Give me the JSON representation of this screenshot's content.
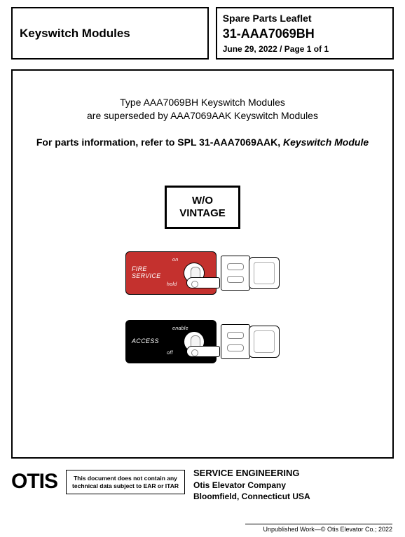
{
  "header": {
    "left_title": "Keyswitch Modules",
    "spl_label": "Spare Parts Leaflet",
    "part_number": "31-AAA7069BH",
    "date_page": "June 29, 2022 / Page 1 of 1"
  },
  "body": {
    "supersede_line1": "Type AAA7069BH Keyswitch Modules",
    "supersede_line2": "are superseded by AAA7069AAK Keyswitch Modules",
    "refer_prefix": "For parts information, refer to SPL 31-AAA7069AAK, ",
    "refer_italic": "Keyswitch Module",
    "wo_line1": "W/O",
    "wo_line2": "VINTAGE"
  },
  "modules": {
    "fire": {
      "plate_color": "#c4312e",
      "main_line1": "FIRE",
      "main_line2": "SERVICE",
      "top_label": "on",
      "bottom_label": "hold"
    },
    "access": {
      "plate_color": "#000000",
      "main_line1": "ACCESS",
      "top_label": "enable",
      "bottom_label": "off"
    }
  },
  "footer": {
    "logo": "OTIS",
    "disclaimer_line1": "This document does not contain any",
    "disclaimer_line2": "technical data subject to EAR or ITAR",
    "service_eng": "SERVICE ENGINEERING",
    "company": "Otis Elevator Company",
    "location": "Bloomfield, Connecticut USA",
    "unpublished": "Unpublished Work—© Otis Elevator Co.; 2022"
  },
  "colors": {
    "border": "#000000",
    "background": "#ffffff",
    "red_plate": "#c4312e",
    "black_plate": "#000000"
  }
}
